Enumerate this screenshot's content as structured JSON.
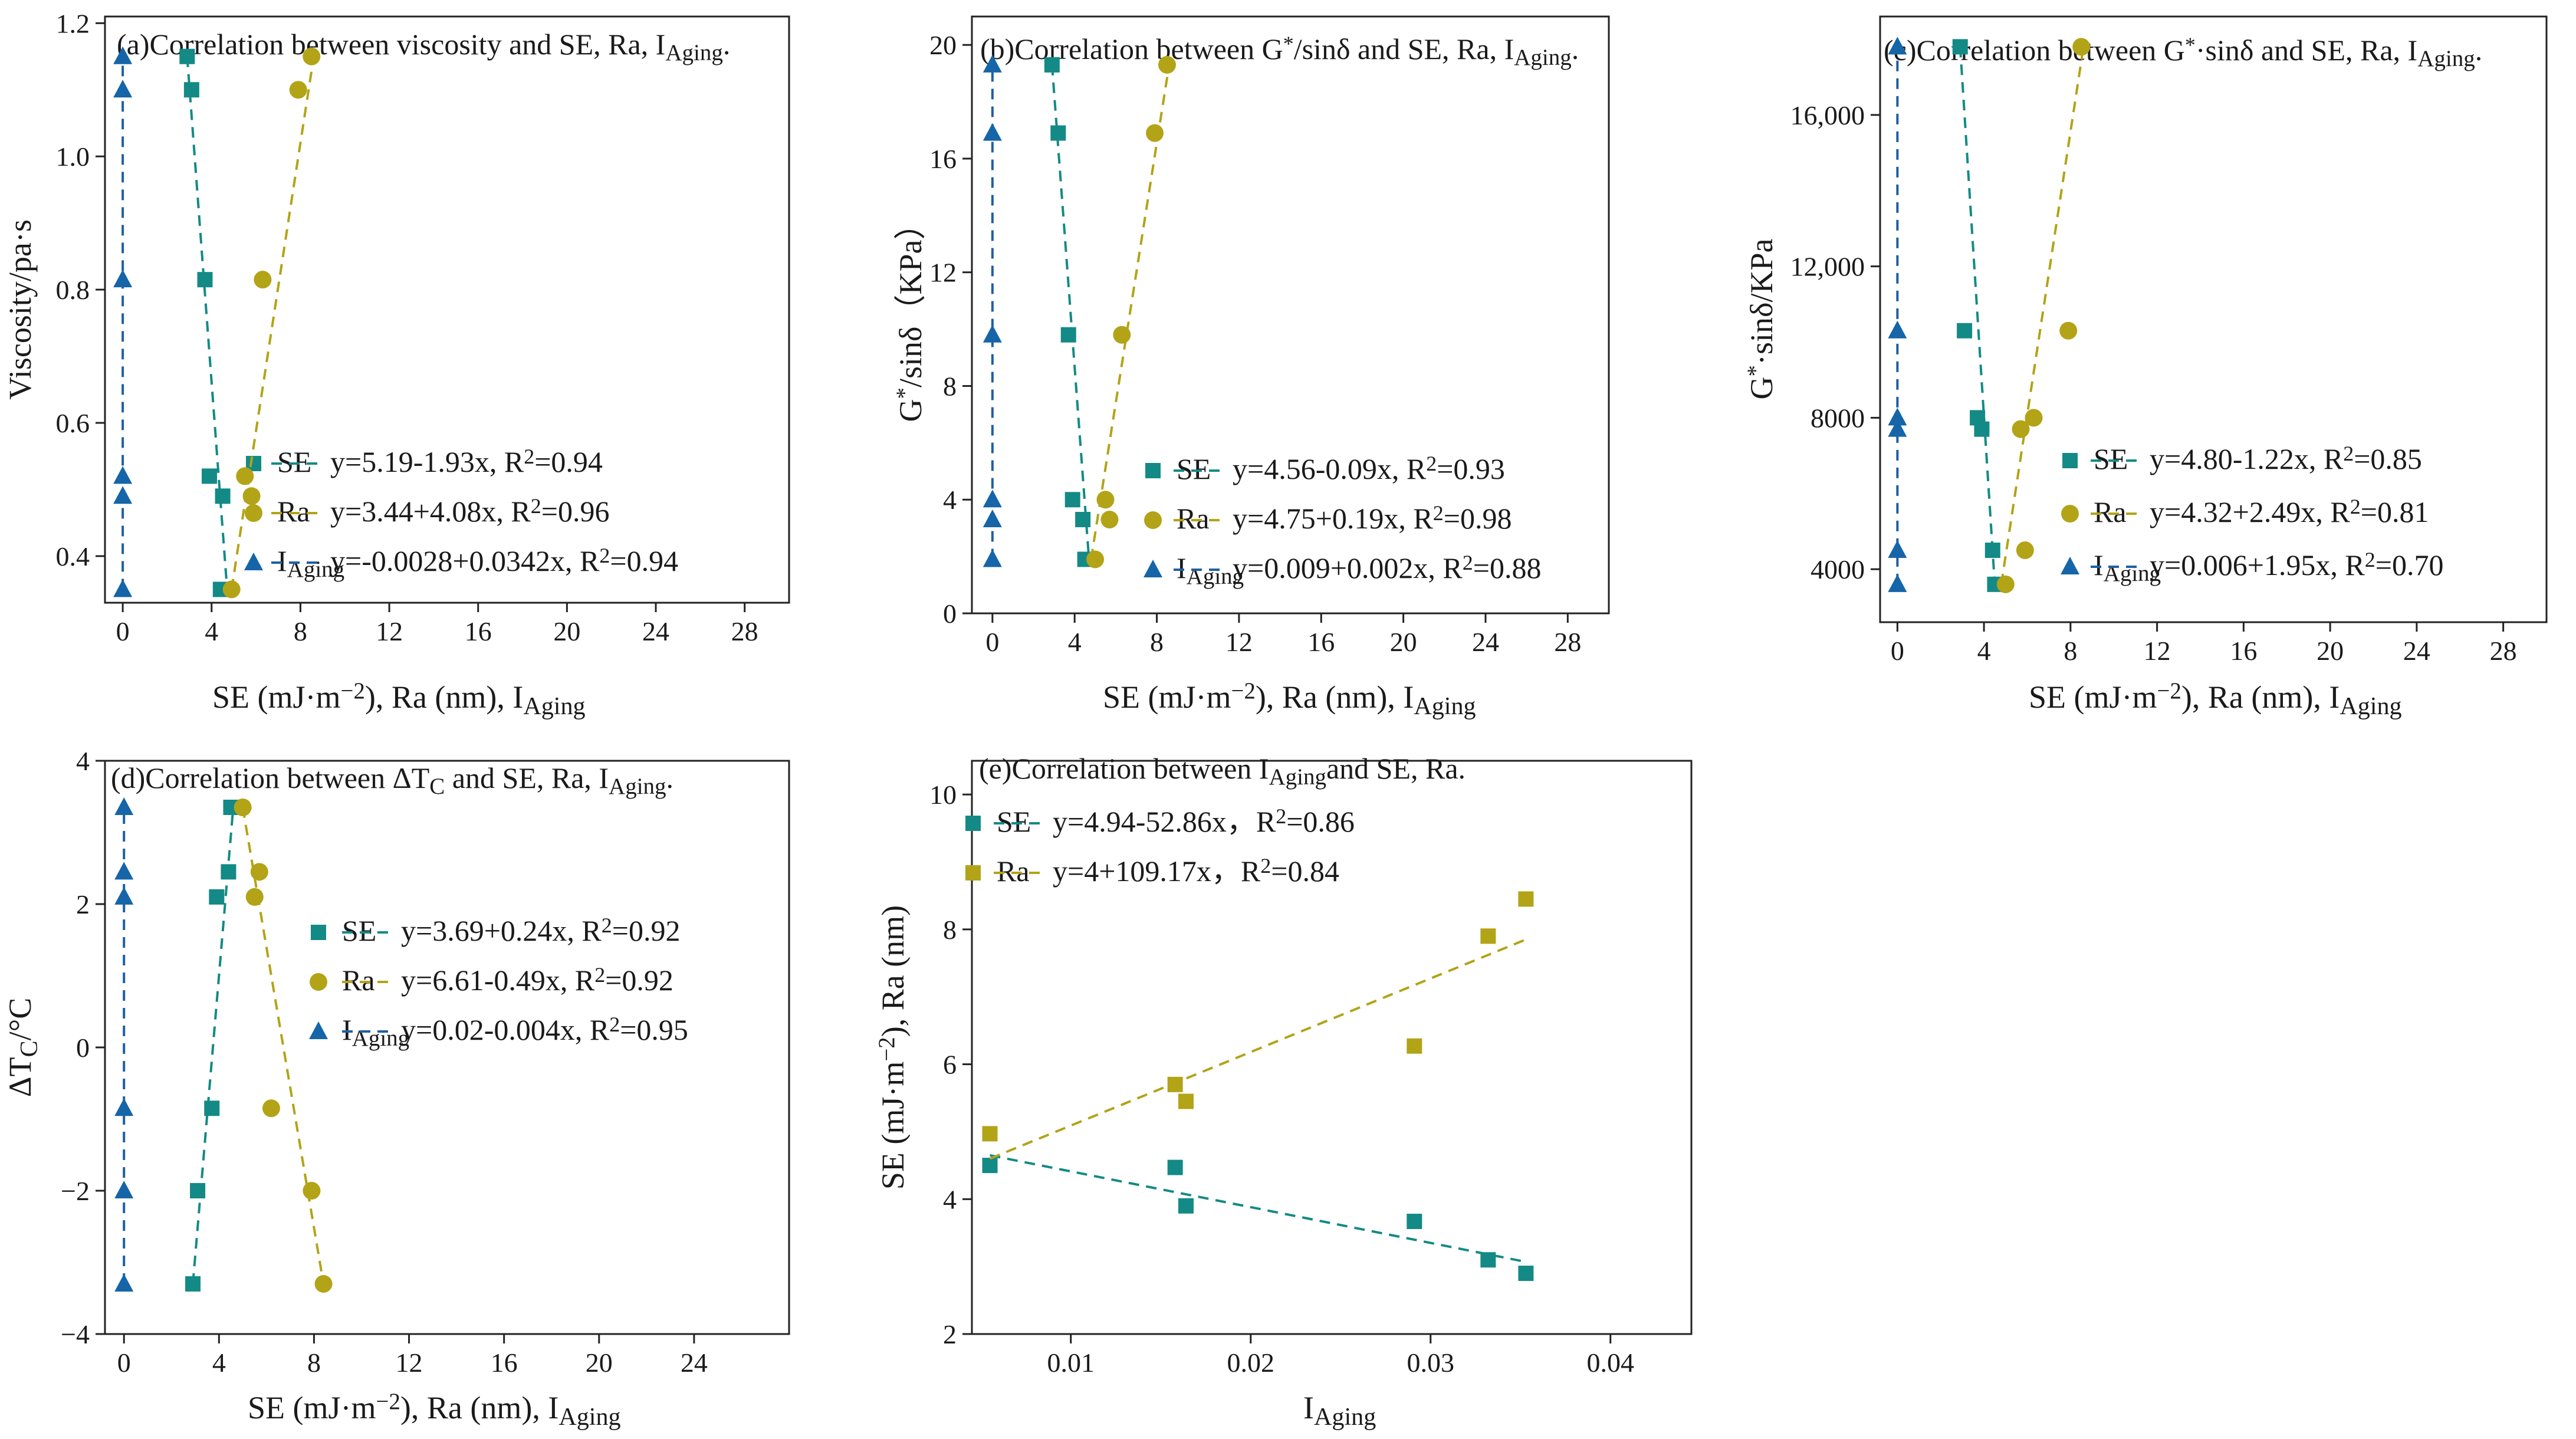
{
  "colors": {
    "SE": "#138a86",
    "Ra": "#b3a317",
    "IAging": "#1565a8",
    "fit_IAging": "#1f5fa0"
  },
  "chart_data": [
    {
      "id": "a",
      "type": "scatter",
      "title_main": "(a)Correlation between viscosity and SE, Ra, I",
      "title_sub": "Aging",
      "title_end": ".",
      "xlabel_main": "SE (mJ·m",
      "xlabel_sup": "−2",
      "xlabel_mid": "), Ra (nm), I",
      "xlabel_sub": "Aging",
      "ylabel": "Viscosity/pa·s",
      "xlim": [
        -0.8,
        30
      ],
      "ylim": [
        0.33,
        1.21
      ],
      "xticks": [
        0,
        4,
        8,
        12,
        16,
        20,
        24,
        28
      ],
      "xticklabels": [
        "0",
        "4",
        "8",
        "12",
        "16",
        "20",
        "24",
        "28"
      ],
      "yticks": [
        0.4,
        0.6,
        0.8,
        1.0,
        1.2
      ],
      "yticklabels": [
        "0.4",
        "0.6",
        "0.8",
        "1.0",
        "1.2"
      ],
      "y_values": [
        0.35,
        0.49,
        0.52,
        0.815,
        1.1,
        1.15
      ],
      "series": [
        {
          "key": "SE",
          "marker": "square",
          "label": "SE",
          "label_sub": "",
          "eq": "y=5.19-1.93x, R",
          "eq_sup": "2",
          "eq_end": "=0.94",
          "x": [
            4.4,
            4.5,
            3.9,
            3.7,
            3.1,
            2.9
          ],
          "fit": [
            [
              2.9,
              1.15
            ],
            [
              4.7,
              0.35
            ]
          ]
        },
        {
          "key": "Ra",
          "marker": "circle",
          "label": "Ra",
          "label_sub": "",
          "eq": "y=3.44+4.08x, R",
          "eq_sup": "2",
          "eq_end": "=0.96",
          "x": [
            4.9,
            5.8,
            5.5,
            6.3,
            7.9,
            8.5
          ],
          "fit": [
            [
              4.9,
              0.35
            ],
            [
              8.6,
              1.15
            ]
          ]
        },
        {
          "key": "IAging",
          "marker": "triangle",
          "label": "I",
          "label_sub": "Aging",
          "eq": "y=-0.0028+0.0342x, R",
          "eq_sup": "2",
          "eq_end": "=0.94",
          "x": [
            0,
            0,
            0,
            0,
            0,
            0
          ],
          "fit": [
            [
              0,
              0.35
            ],
            [
              0,
              1.15
            ]
          ]
        }
      ]
    },
    {
      "id": "b",
      "type": "scatter",
      "title_main": "(b)Correlation between G",
      "title_sup": "*",
      "title_mid": "/sinδ and SE, Ra, I",
      "title_sub": "Aging",
      "title_end": ".",
      "xlabel_main": "SE (mJ·m",
      "xlabel_sup": "−2",
      "xlabel_mid": "), Ra (nm), I",
      "xlabel_sub": "Aging",
      "ylabel_main": "G",
      "ylabel_sup": "*",
      "ylabel_end": "/sinδ（KPa）",
      "xlim": [
        -1,
        30
      ],
      "ylim": [
        0,
        21
      ],
      "xticks": [
        0,
        4,
        8,
        12,
        16,
        20,
        24,
        28
      ],
      "xticklabels": [
        "0",
        "4",
        "8",
        "12",
        "16",
        "20",
        "24",
        "28"
      ],
      "yticks": [
        0,
        4,
        8,
        12,
        16,
        20
      ],
      "yticklabels": [
        "0",
        "4",
        "8",
        "12",
        "16",
        "20"
      ],
      "y_values": [
        1.9,
        3.3,
        4.0,
        9.8,
        16.9,
        19.3
      ],
      "series": [
        {
          "key": "SE",
          "marker": "square",
          "label": "SE",
          "label_sub": "",
          "eq": "y=4.56-0.09x, R",
          "eq_sup": "2",
          "eq_end": "=0.93",
          "x": [
            4.5,
            4.4,
            3.9,
            3.7,
            3.2,
            2.9
          ],
          "fit": [
            [
              2.9,
              19.3
            ],
            [
              4.7,
              1.9
            ]
          ]
        },
        {
          "key": "Ra",
          "marker": "circle",
          "label": "Ra",
          "label_sub": "",
          "eq": "y=4.75+0.19x, R",
          "eq_sup": "2",
          "eq_end": "=0.98",
          "x": [
            5.0,
            5.7,
            5.5,
            6.3,
            7.9,
            8.5
          ],
          "fit": [
            [
              4.8,
              1.9
            ],
            [
              8.6,
              19.3
            ]
          ]
        },
        {
          "key": "IAging",
          "marker": "triangle",
          "label": "I",
          "label_sub": "Aging",
          "eq": "y=0.009+0.002x, R",
          "eq_sup": "2",
          "eq_end": "=0.88",
          "x": [
            0,
            0,
            0,
            0,
            0,
            0
          ],
          "fit": [
            [
              0,
              1.9
            ],
            [
              0,
              19.3
            ]
          ]
        }
      ]
    },
    {
      "id": "c",
      "type": "scatter",
      "title_main": "(c)Correlation between G",
      "title_sup": "*",
      "title_mid": "·sinδ  and SE, Ra, I",
      "title_sub": "Aging",
      "title_end": ".",
      "xlabel_main": "SE (mJ·m",
      "xlabel_sup": "−2",
      "xlabel_mid": "), Ra (nm), I",
      "xlabel_sub": "Aging",
      "ylabel_main": "G",
      "ylabel_sup": "*",
      "ylabel_end": "·sinδ/KPa",
      "xlim": [
        -0.8,
        30
      ],
      "ylim": [
        2600,
        18600
      ],
      "xticks": [
        0,
        4,
        8,
        12,
        16,
        20,
        24,
        28
      ],
      "xticklabels": [
        "0",
        "4",
        "8",
        "12",
        "16",
        "20",
        "24",
        "28"
      ],
      "yticks": [
        4000,
        8000,
        12000,
        16000
      ],
      "yticklabels": [
        "4000",
        "8000",
        "12,000",
        "16,000"
      ],
      "y_values": [
        3600,
        4500,
        7700,
        8000,
        10300,
        17800
      ],
      "series": [
        {
          "key": "SE",
          "marker": "square",
          "label": "SE",
          "label_sub": "",
          "eq": "y=4.80-1.22x, R",
          "eq_sup": "2",
          "eq_end": "=0.85",
          "x": [
            4.5,
            4.4,
            3.9,
            3.7,
            3.1,
            2.9
          ],
          "fit": [
            [
              2.9,
              17800
            ],
            [
              4.5,
              3600
            ]
          ]
        },
        {
          "key": "Ra",
          "marker": "circle",
          "label": "Ra",
          "label_sub": "",
          "eq": "y=4.32+2.49x, R",
          "eq_sup": "2",
          "eq_end": "=0.81",
          "x": [
            5.0,
            5.9,
            5.7,
            6.3,
            7.9,
            8.5
          ],
          "fit": [
            [
              4.8,
              3600
            ],
            [
              8.6,
              17800
            ]
          ]
        },
        {
          "key": "IAging",
          "marker": "triangle",
          "label": "I",
          "label_sub": "Aging",
          "eq": "y=0.006+1.95x, R",
          "eq_sup": "2",
          "eq_end": "=0.70",
          "x": [
            0,
            0,
            0,
            0,
            0,
            0
          ],
          "fit": [
            [
              0,
              3600
            ],
            [
              0,
              17800
            ]
          ]
        }
      ]
    },
    {
      "id": "d",
      "type": "scatter",
      "title_main": "(d)Correlation between ΔT",
      "title_sub1": "C",
      "title_mid": " and SE, Ra, I",
      "title_sub": "Aging",
      "title_end": ".",
      "xlabel_main": "SE (mJ·m",
      "xlabel_sup": "−2",
      "xlabel_mid": "), Ra (nm), I",
      "xlabel_sub": "Aging",
      "ylabel_main": "ΔT",
      "ylabel_sub": "C",
      "ylabel_end": "/°C",
      "xlim": [
        -0.8,
        28
      ],
      "ylim": [
        -4,
        4
      ],
      "xticks": [
        0,
        4,
        8,
        12,
        16,
        20,
        24
      ],
      "xticklabels": [
        "0",
        "4",
        "8",
        "12",
        "16",
        "20",
        "24"
      ],
      "yticks": [
        -4,
        -2,
        0,
        2,
        4
      ],
      "yticklabels": [
        "−4",
        "−2",
        "0",
        "2",
        "4"
      ],
      "y_values": [
        -3.3,
        -2.0,
        -0.85,
        2.1,
        2.45,
        3.35
      ],
      "series": [
        {
          "key": "SE",
          "marker": "square",
          "label": "SE",
          "label_sub": "",
          "eq": "y=3.69+0.24x, R",
          "eq_sup": "2",
          "eq_end": "=0.92",
          "x": [
            2.9,
            3.1,
            3.7,
            3.9,
            4.4,
            4.5
          ],
          "fit": [
            [
              2.9,
              -3.3
            ],
            [
              4.6,
              3.35
            ]
          ]
        },
        {
          "key": "Ra",
          "marker": "circle",
          "label": "Ra",
          "label_sub": "",
          "eq": "y=6.61-0.49x, R",
          "eq_sup": "2",
          "eq_end": "=0.92",
          "x": [
            8.4,
            7.9,
            6.2,
            5.5,
            5.7,
            5.0
          ],
          "fit": [
            [
              5.0,
              3.35
            ],
            [
              8.4,
              -3.3
            ]
          ]
        },
        {
          "key": "IAging",
          "marker": "triangle",
          "label": "I",
          "label_sub": "Aging",
          "eq": "y=0.02-0.004x, R",
          "eq_sup": "2",
          "eq_end": "=0.95",
          "x": [
            0,
            0,
            0,
            0,
            0,
            0
          ],
          "fit": [
            [
              0,
              -3.3
            ],
            [
              0,
              3.35
            ]
          ]
        }
      ]
    },
    {
      "id": "e",
      "type": "scatter",
      "title_main": "(e)Correlation between I",
      "title_sub": "Aging",
      "title_end": "and SE, Ra.",
      "xlabel_main": "I",
      "xlabel_sub": "Aging",
      "ylabel_main": "SE (mJ·m",
      "ylabel_sup": "−2",
      "ylabel_end": "), Ra (nm)",
      "xlim": [
        0.0045,
        0.0445
      ],
      "ylim": [
        2,
        10.5
      ],
      "xticks": [
        0.01,
        0.02,
        0.03,
        0.04
      ],
      "xticklabels": [
        "0.01",
        "0.02",
        "0.03",
        "0.04"
      ],
      "yticks": [
        2,
        4,
        6,
        8,
        10
      ],
      "yticklabels": [
        "2",
        "4",
        "6",
        "8",
        "10"
      ],
      "x_values": [
        0.0055,
        0.0158,
        0.0164,
        0.0291,
        0.0332,
        0.0353
      ],
      "series": [
        {
          "key": "SE",
          "marker": "square",
          "label": "SE",
          "label_sub": "",
          "eq": "y=4.94-52.86x，R",
          "eq_sup": "2",
          "eq_end": "=0.86",
          "y": [
            4.5,
            4.47,
            3.9,
            3.67,
            3.1,
            2.9
          ],
          "fit": [
            [
              0.0055,
              4.65
            ],
            [
              0.0353,
              3.07
            ]
          ]
        },
        {
          "key": "Ra",
          "marker": "square",
          "label": "Ra",
          "label_sub": "",
          "eq": "y=4+109.17x，R",
          "eq_sup": "2",
          "eq_end": "=0.84",
          "y": [
            4.97,
            5.7,
            5.45,
            6.27,
            7.9,
            8.45
          ],
          "fit": [
            [
              0.0055,
              4.6
            ],
            [
              0.0353,
              7.85
            ]
          ]
        }
      ]
    }
  ]
}
